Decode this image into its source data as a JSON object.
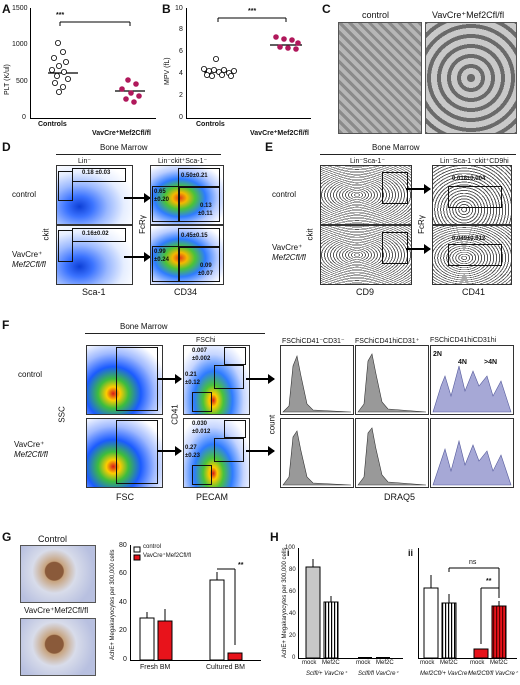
{
  "panels": {
    "A": "A",
    "B": "B",
    "C": "C",
    "D": "D",
    "E": "E",
    "F": "F",
    "G": "G",
    "H": "H"
  },
  "panelA": {
    "ylabel": "PLT (K/ul)",
    "yticks": [
      "1500",
      "1000",
      "500",
      "0"
    ],
    "xcats": [
      "Controls",
      "VavCre⁺Mef2Cfl/fl"
    ],
    "sig": "***"
  },
  "panelB": {
    "ylabel": "MPV (fL)",
    "yticks": [
      "10",
      "8",
      "6",
      "4",
      "2",
      "0"
    ],
    "xcats": [
      "Controls",
      "VavCre⁺Mef2Cfl/fl"
    ],
    "sig": "***"
  },
  "panelC": {
    "left": "control",
    "right": "VavCre⁺Mef2Cfl/fl"
  },
  "panelD": {
    "title": "Bone Marrow",
    "col1": "Lin⁻",
    "col2": "Lin⁻ckit⁺Sca-1⁻",
    "row1": "control",
    "row2a": "VavCre⁺",
    "row2b": "Mef2Cfl/fl",
    "xlabel1": "Sca-1",
    "xlabel2": "CD34",
    "ylabel1": "ckit",
    "ylabel2": "FcRγ",
    "ctrl_gate": "0.18 ±0.03",
    "vav_gate": "0.16±0.02",
    "ctrl_q1": "0.50±0.21",
    "ctrl_q2": "0.65",
    "ctrl_q2b": "±0.20",
    "ctrl_q3": "0.13",
    "ctrl_q3b": "±0.11",
    "vav_q1": "0.45±0.15",
    "vav_q2": "0.99",
    "vav_q2b": "±0.24",
    "vav_q3": "0.09",
    "vav_q3b": "±0.07"
  },
  "panelE": {
    "title": "Bone Marrow",
    "col1": "Lin⁻Sca-1⁻",
    "col2": "Lin⁻Sca-1⁻ckit⁺CD9hi",
    "row1": "control",
    "row2a": "VavCre⁺",
    "row2b": "Mef2Cfl/fl",
    "xlabel1": "CD9",
    "xlabel2": "CD41",
    "ylabel1": "ckit",
    "ylabel2": "FcRγ",
    "ctrl_val": "0.018±0.004",
    "vav_val": "0.049±0.012"
  },
  "panelF": {
    "title": "Bone Marrow",
    "col2": "FSChi",
    "col3": "FSChiCD41⁻CD31⁻",
    "col4": "FSChiCD41hiCD31⁺",
    "col5": "FSChiCD41hiCD31hi",
    "row1": "control",
    "row2a": "VavCre⁺",
    "row2b": "Mef2Cfl/fl",
    "xlabel1": "FSC",
    "xlabel2": "PECAM",
    "xlabel3": "DRAQ5",
    "ylabel1": "SSC",
    "ylabel2": "CD41",
    "ylabel3": "count",
    "ctrl_a": "0.007",
    "ctrl_ab": "±0.002",
    "ctrl_b": "0.21",
    "ctrl_bb": "±0.12",
    "vav_a": "0.030",
    "vav_ab": "±0.012",
    "vav_b": "0.27",
    "vav_bb": "±0.23",
    "ploidy": [
      "2N",
      "4N",
      ">4N"
    ]
  },
  "panelG": {
    "title_control": "Control",
    "title_vav": "VavCre⁺Mef2Cfl/fl",
    "ylabel": "AchE+ Megakaryocytes per 300,000 cells",
    "yticks": [
      "80",
      "60",
      "40",
      "20",
      "0"
    ],
    "legend": [
      "control",
      "VavCre⁺Mef2Cfl/fl"
    ],
    "xcats": [
      "Fresh BM",
      "Cultured BM"
    ],
    "sig": "**"
  },
  "panelH": {
    "sub_i": "i",
    "sub_ii": "ii",
    "ylabel": "AchE+ Megakaryocytes per 300,000 cells",
    "yticks": [
      "100",
      "80",
      "60",
      "40",
      "20",
      "0"
    ],
    "i_labels": [
      "mock",
      "Mef2C",
      "mock",
      "Mef2C"
    ],
    "i_groups": [
      "Sclfl/+ VavCre⁺",
      "Sclfl/fl VavCre⁺"
    ],
    "ii_labels": [
      "mock",
      "Mef2C",
      "mock",
      "Mef2C"
    ],
    "ii_groups": [
      "Mef2Cfl/+ VavCre⁺",
      "Mef2Cfl/fl VavCre⁺"
    ],
    "ns": "ns",
    "sig": "**"
  }
}
